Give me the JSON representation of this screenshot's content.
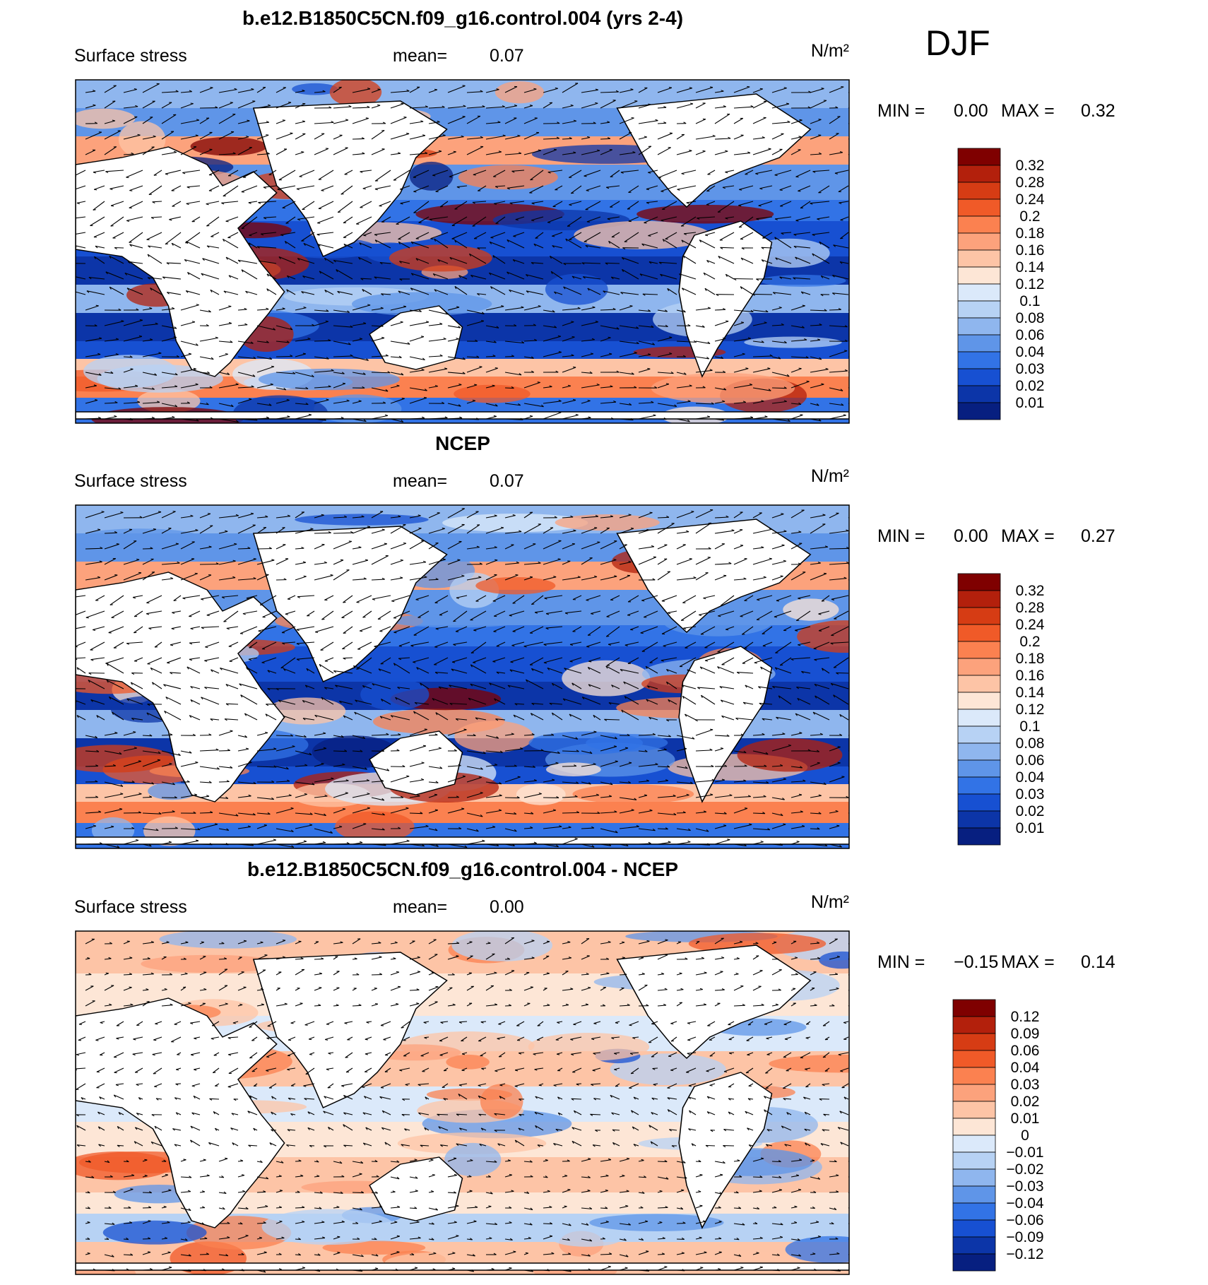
{
  "season_label": "DJF",
  "panels": [
    {
      "title": "b.e12.B1850C5CN.f09_g16.control.004 (yrs 2-4)",
      "field_label": "Surface stress",
      "mean_label": "mean=",
      "mean_value": "0.07",
      "units": "N/m²",
      "min_label": "MIN =",
      "min_value": "0.00",
      "max_label": "MAX =",
      "max_value": "0.32",
      "map_kind": "model",
      "colorbar_labels": [
        "0.32",
        "0.28",
        "0.24",
        "0.2",
        "0.18",
        "0.16",
        "0.14",
        "0.12",
        "0.1",
        "0.08",
        "0.06",
        "0.04",
        "0.03",
        "0.02",
        "0.01"
      ],
      "colorbar_colors": [
        "#7f0000",
        "#b3200c",
        "#d63c14",
        "#f05a28",
        "#fb8150",
        "#fca27c",
        "#fdc4a6",
        "#fde6d6",
        "#dbe9fa",
        "#b7d2f4",
        "#8fb6ee",
        "#5f95e8",
        "#3273e6",
        "#1750d2",
        "#0c35a8",
        "#071f80"
      ]
    },
    {
      "title": "NCEP",
      "field_label": "Surface stress",
      "mean_label": "mean=",
      "mean_value": "0.07",
      "units": "N/m²",
      "min_label": "MIN =",
      "min_value": "0.00",
      "max_label": "MAX =",
      "max_value": "0.27",
      "map_kind": "obs",
      "colorbar_labels": [
        "0.32",
        "0.28",
        "0.24",
        "0.2",
        "0.18",
        "0.16",
        "0.14",
        "0.12",
        "0.1",
        "0.08",
        "0.06",
        "0.04",
        "0.03",
        "0.02",
        "0.01"
      ],
      "colorbar_colors": [
        "#7f0000",
        "#b3200c",
        "#d63c14",
        "#f05a28",
        "#fb8150",
        "#fca27c",
        "#fdc4a6",
        "#fde6d6",
        "#dbe9fa",
        "#b7d2f4",
        "#8fb6ee",
        "#5f95e8",
        "#3273e6",
        "#1750d2",
        "#0c35a8",
        "#071f80"
      ]
    },
    {
      "title": "b.e12.B1850C5CN.f09_g16.control.004 - NCEP",
      "field_label": "Surface stress",
      "mean_label": "mean=",
      "mean_value": "0.00",
      "units": "N/m²",
      "min_label": "MIN =",
      "min_value": "−0.15",
      "max_label": "MAX =",
      "max_value": "0.14",
      "map_kind": "diff",
      "colorbar_labels": [
        "0.12",
        "0.09",
        "0.06",
        "0.04",
        "0.03",
        "0.02",
        "0.01",
        "0",
        "−0.01",
        "−0.02",
        "−0.03",
        "−0.04",
        "−0.06",
        "−0.09",
        "−0.12"
      ],
      "colorbar_colors": [
        "#7f0000",
        "#b3200c",
        "#d63c14",
        "#f05a28",
        "#fb8150",
        "#fca27c",
        "#fdc4a6",
        "#fde6d6",
        "#dbe9fa",
        "#b7d2f4",
        "#8fb6ee",
        "#5f95e8",
        "#3273e6",
        "#1750d2",
        "#0c35a8",
        "#071f80"
      ]
    }
  ]
}
